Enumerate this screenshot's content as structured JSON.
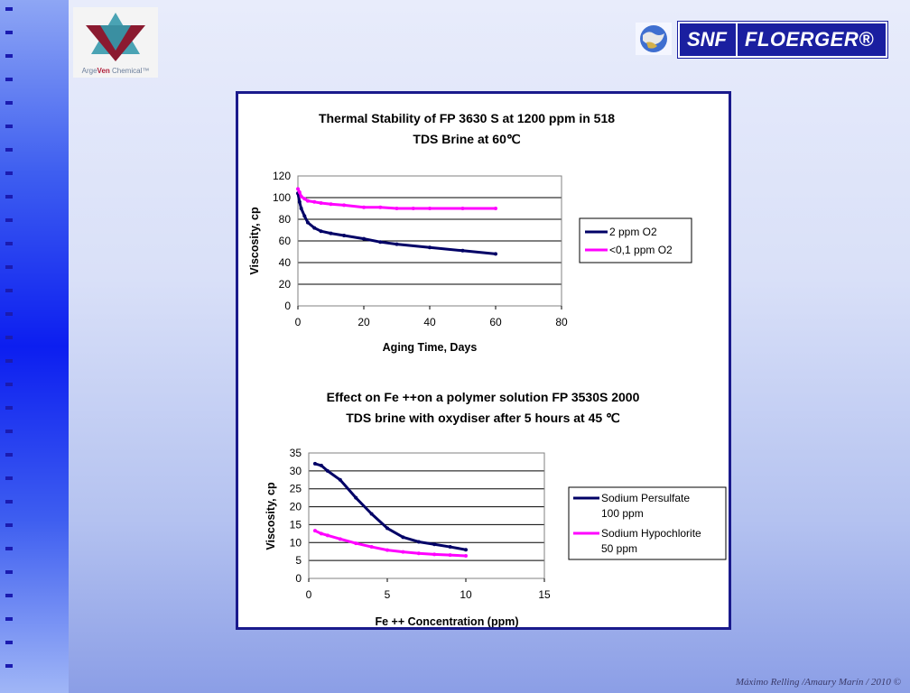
{
  "logos": {
    "left_brand_prefix": "Arge",
    "left_brand_mid": "Ven",
    "left_brand_suffix": " Chemical™",
    "right_brand_a": "SNF",
    "right_brand_b": "FLOERGER®"
  },
  "footer": "Máximo Relling /Amaury Marín / 2010 ©",
  "colors": {
    "navy": "#000066",
    "magenta": "#ff00ff",
    "panel_border": "#1a1a8c"
  },
  "chart_data": [
    {
      "type": "line",
      "title_line1": "Thermal Stability of FP 3630 S at 1200 ppm in 518",
      "title_line2": "TDS Brine at 60℃",
      "xlabel": "Aging Time, Days",
      "ylabel": "Viscosity, cp",
      "xlim": [
        0,
        80
      ],
      "ylim": [
        0,
        120
      ],
      "xticks": [
        0,
        20,
        40,
        60,
        80
      ],
      "yticks": [
        0,
        20,
        40,
        60,
        80,
        100,
        120
      ],
      "grid": "horizontal",
      "legend_position": "right",
      "series": [
        {
          "name": "2 ppm O2",
          "color": "#000066",
          "x": [
            0,
            0.5,
            1,
            2,
            3,
            5,
            7,
            10,
            14,
            20,
            25,
            30,
            40,
            50,
            60
          ],
          "y": [
            104,
            96,
            90,
            83,
            77,
            72,
            69,
            67,
            65,
            62,
            59,
            57,
            54,
            51,
            48
          ]
        },
        {
          "name": "<0,1 ppm O2",
          "color": "#ff00ff",
          "x": [
            0,
            0.5,
            1,
            2,
            3,
            5,
            7,
            10,
            14,
            20,
            25,
            30,
            35,
            40,
            50,
            60
          ],
          "y": [
            108,
            105,
            101,
            99,
            97,
            96,
            95,
            94,
            93,
            91,
            91,
            90,
            90,
            90,
            90,
            90
          ]
        }
      ]
    },
    {
      "type": "line",
      "title_line1": "Effect on Fe ++on a polymer solution FP 3530S 2000",
      "title_line2": "TDS brine with oxydiser after 5 hours at 45 ℃",
      "xlabel": "Fe ++ Concentration (ppm)",
      "ylabel": "Viscosity, cp",
      "xlim": [
        0,
        15
      ],
      "ylim": [
        0,
        35
      ],
      "xticks": [
        0,
        5,
        10,
        15
      ],
      "yticks": [
        0,
        5,
        10,
        15,
        20,
        25,
        30,
        35
      ],
      "grid": "horizontal",
      "legend_position": "right",
      "series": [
        {
          "name_line1": "Sodium Persulfate",
          "name_line2": "100 ppm",
          "color": "#000066",
          "x": [
            0.4,
            0.8,
            1.2,
            2,
            3,
            4,
            5,
            6,
            7,
            8,
            9,
            10
          ],
          "y": [
            32,
            31.5,
            30,
            27.5,
            22.5,
            18,
            14,
            11.5,
            10.2,
            9.5,
            8.8,
            8
          ]
        },
        {
          "name_line1": "Sodium Hypochlorite",
          "name_line2": "50 ppm",
          "color": "#ff00ff",
          "x": [
            0.4,
            0.8,
            1.2,
            2,
            3,
            4,
            5,
            6,
            7,
            8,
            9,
            10
          ],
          "y": [
            13.3,
            12.5,
            12,
            11,
            9.8,
            8.8,
            7.9,
            7.4,
            7,
            6.7,
            6.5,
            6.3
          ]
        }
      ]
    }
  ]
}
